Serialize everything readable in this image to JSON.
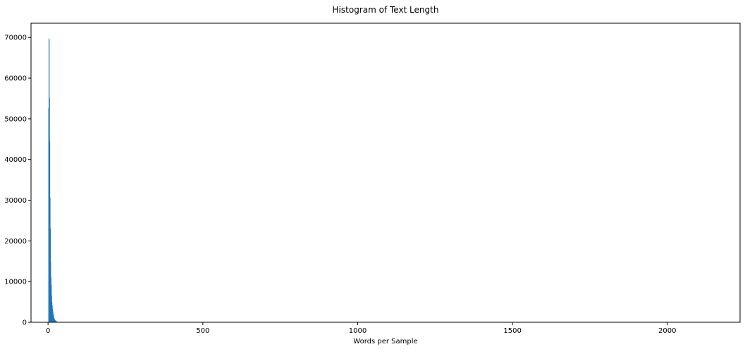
{
  "chart_data": {
    "type": "bar",
    "title": "Histogram of Text Length",
    "xlabel": "Words per Sample",
    "ylabel": "",
    "xlim": [
      -55,
      2235
    ],
    "ylim": [
      0,
      73500
    ],
    "x_ticks": [
      0,
      500,
      1000,
      1500,
      2000
    ],
    "y_ticks": [
      0,
      10000,
      20000,
      30000,
      40000,
      50000,
      60000,
      70000
    ],
    "bin_width": 1,
    "bins_start": 1,
    "values": [
      52600,
      69800,
      69500,
      55200,
      44400,
      30500,
      23000,
      14800,
      11000,
      9200,
      6600,
      5000,
      4100,
      3300,
      2700,
      2100,
      1700,
      1300,
      1000,
      800,
      650,
      520,
      420,
      340,
      280,
      230,
      190,
      160,
      130,
      110,
      90,
      75,
      60,
      50,
      40,
      30,
      20,
      10
    ],
    "bar_color": "#1f77b4",
    "grid": false,
    "legend": "none"
  }
}
